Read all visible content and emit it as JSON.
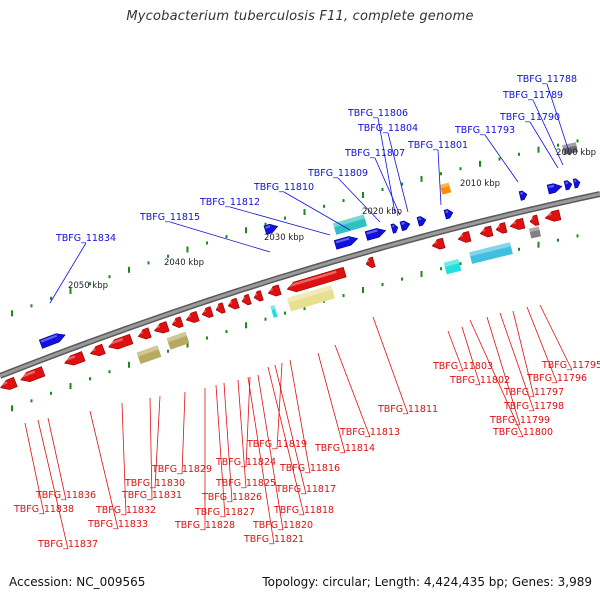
{
  "title": "Mycobacterium tuberculosis F11, complete genome",
  "footer": {
    "accession": "Accession: NC_009565",
    "topology": "Topology: circular; Length: 4,424,435 bp; Genes: 3,989"
  },
  "colors": {
    "forward": "#1010e0",
    "reverse": "#e01010",
    "backbone": "#808080",
    "tick": "#1a8a1a",
    "rna": "#20c8c8",
    "misc": "#c8c080",
    "orange": "#ff8c00"
  },
  "scale": [
    "2000 kbp",
    "2010 kbp",
    "2020 kbp",
    "2030 kbp",
    "2040 kbp",
    "2050 kbp"
  ],
  "forward_labels": [
    "TBFG_11788",
    "TBFG_11789",
    "TBFG_11790",
    "TBFG_11793",
    "TBFG_11801",
    "TBFG_11804",
    "TBFG_11806",
    "TBFG_11807",
    "TBFG_11809",
    "TBFG_11810",
    "TBFG_11812",
    "TBFG_11815",
    "TBFG_11834"
  ],
  "reverse_labels": [
    "TBFG_11795",
    "TBFG_11796",
    "TBFG_11797",
    "TBFG_11798",
    "TBFG_11799",
    "TBFG_11800",
    "TBFG_11802",
    "TBFG_11803",
    "TBFG_11811",
    "TBFG_11813",
    "TBFG_11814",
    "TBFG_11816",
    "TBFG_11817",
    "TBFG_11818",
    "TBFG_11819",
    "TBFG_11820",
    "TBFG_11821",
    "TBFG_11824",
    "TBFG_11825",
    "TBFG_11826",
    "TBFG_11827",
    "TBFG_11828",
    "TBFG_11829",
    "TBFG_11830",
    "TBFG_11831",
    "TBFG_11832",
    "TBFG_11833",
    "TBFG_11836",
    "TBFG_11837",
    "TBFG_11838"
  ]
}
